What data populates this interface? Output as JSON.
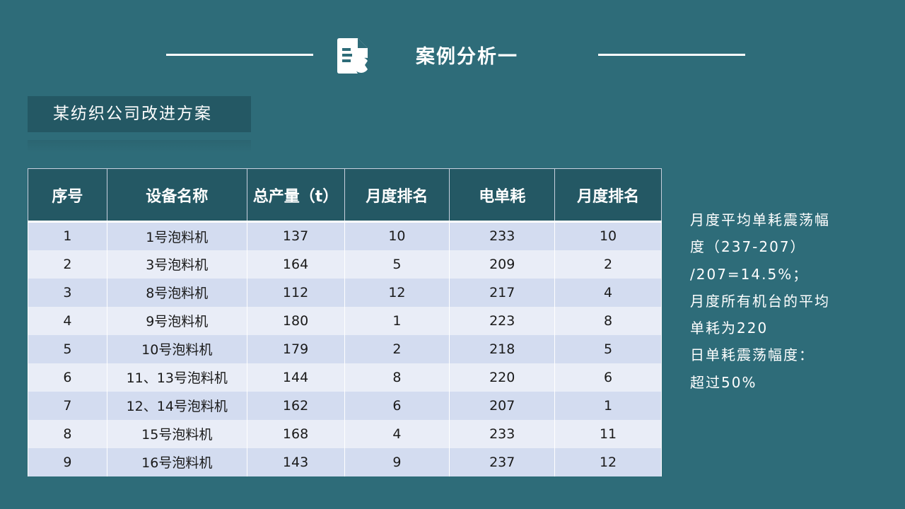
{
  "header": {
    "title": "案例分析一",
    "icon": "document-chart-icon"
  },
  "subtitle": "某纺织公司改进方案",
  "table": {
    "columns": [
      "序号",
      "设备名称",
      "总产量（t）",
      "月度排名",
      "电单耗",
      "月度排名"
    ],
    "rows": [
      [
        "1",
        "1号泡料机",
        "137",
        "10",
        "233",
        "10"
      ],
      [
        "2",
        "3号泡料机",
        "164",
        "5",
        "209",
        "2"
      ],
      [
        "3",
        "8号泡料机",
        "112",
        "12",
        "217",
        "4"
      ],
      [
        "4",
        "9号泡料机",
        "180",
        "1",
        "223",
        "8"
      ],
      [
        "5",
        "10号泡料机",
        "179",
        "2",
        "218",
        "5"
      ],
      [
        "6",
        "11、13号泡料机",
        "144",
        "8",
        "220",
        "6"
      ],
      [
        "7",
        "12、14号泡料机",
        "162",
        "6",
        "207",
        "1"
      ],
      [
        "8",
        "15号泡料机",
        "168",
        "4",
        "233",
        "11"
      ],
      [
        "9",
        "16号泡料机",
        "143",
        "9",
        "237",
        "12"
      ]
    ]
  },
  "note": [
    "月度平均单耗震荡幅",
    "度（237-207）",
    "/207=14.5%；",
    "月度所有机台的平均",
    "单耗为220",
    "日单耗震荡幅度：",
    "超过50%"
  ]
}
